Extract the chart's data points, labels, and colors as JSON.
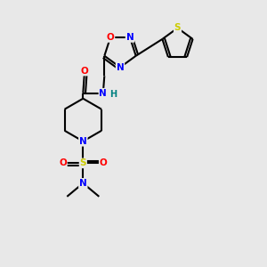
{
  "bg_color": "#e8e8e8",
  "bond_color": "#000000",
  "atom_colors": {
    "O": "#ff0000",
    "N": "#0000ff",
    "S": "#cccc00",
    "C": "#000000",
    "H": "#008080"
  },
  "figsize": [
    3.0,
    3.0
  ],
  "dpi": 100,
  "lw": 1.5,
  "fontsize": 7.5
}
